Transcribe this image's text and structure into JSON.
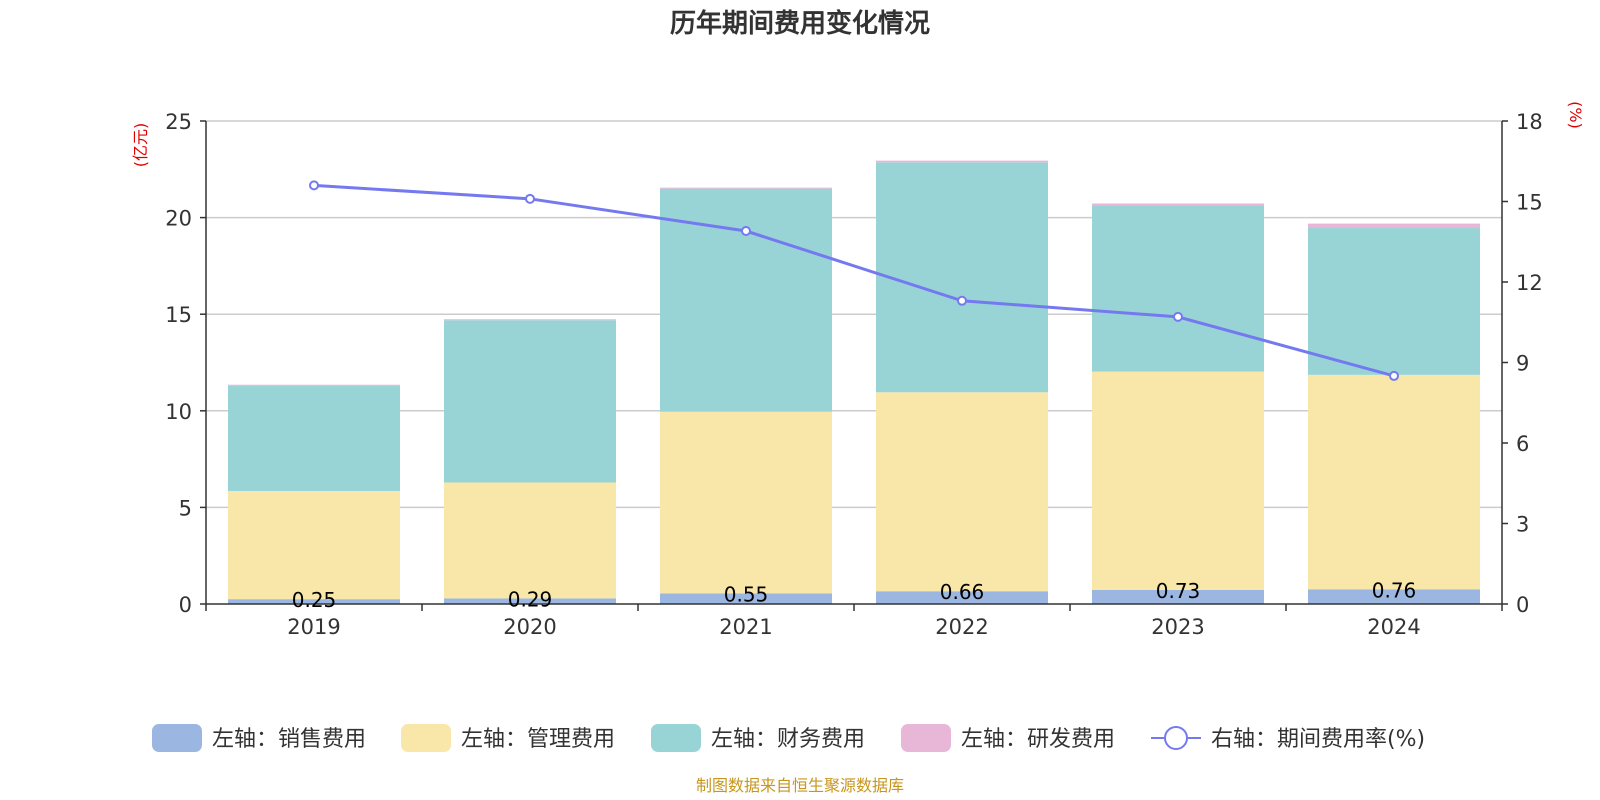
{
  "chart_data": {
    "type": "bar",
    "title": "历年期间费用变化情况",
    "categories": [
      "2019",
      "2020",
      "2021",
      "2022",
      "2023",
      "2024"
    ],
    "left_axis": {
      "unit": "(亿元)",
      "ylim": [
        0,
        25
      ],
      "ticks": [
        0,
        5,
        10,
        15,
        20,
        25
      ]
    },
    "right_axis": {
      "unit": "(%)",
      "ylim": [
        0,
        18
      ],
      "ticks": [
        0,
        3,
        6,
        9,
        12,
        15,
        18
      ]
    },
    "series": [
      {
        "name": "左轴：销售费用",
        "axis": "left",
        "kind": "bar",
        "color": "#9bb6e0",
        "values": [
          0.25,
          0.29,
          0.55,
          0.66,
          0.73,
          0.76
        ],
        "labels": [
          "0.25",
          "0.29",
          "0.55",
          "0.66",
          "0.73",
          "0.76"
        ]
      },
      {
        "name": "左轴：管理费用",
        "axis": "left",
        "kind": "bar",
        "color": "#f8e7a9",
        "values": [
          5.6,
          6.0,
          9.4,
          10.3,
          11.3,
          11.1
        ]
      },
      {
        "name": "左轴：财务费用",
        "axis": "left",
        "kind": "bar",
        "color": "#98d4d5",
        "values": [
          5.45,
          8.4,
          11.55,
          11.9,
          8.6,
          7.6
        ]
      },
      {
        "name": "左轴：研发费用",
        "axis": "left",
        "kind": "bar",
        "color": "#e8b7d8",
        "values": [
          0.05,
          0.05,
          0.05,
          0.09,
          0.1,
          0.23
        ]
      },
      {
        "name": "右轴：期间费用率(%)",
        "axis": "right",
        "kind": "line",
        "color": "#7579f0",
        "values": [
          15.6,
          15.1,
          13.9,
          11.3,
          10.7,
          8.5
        ]
      }
    ],
    "legend": "bottom",
    "grid": true
  },
  "footer": {
    "source": "制图数据来自恒生聚源数据库"
  }
}
